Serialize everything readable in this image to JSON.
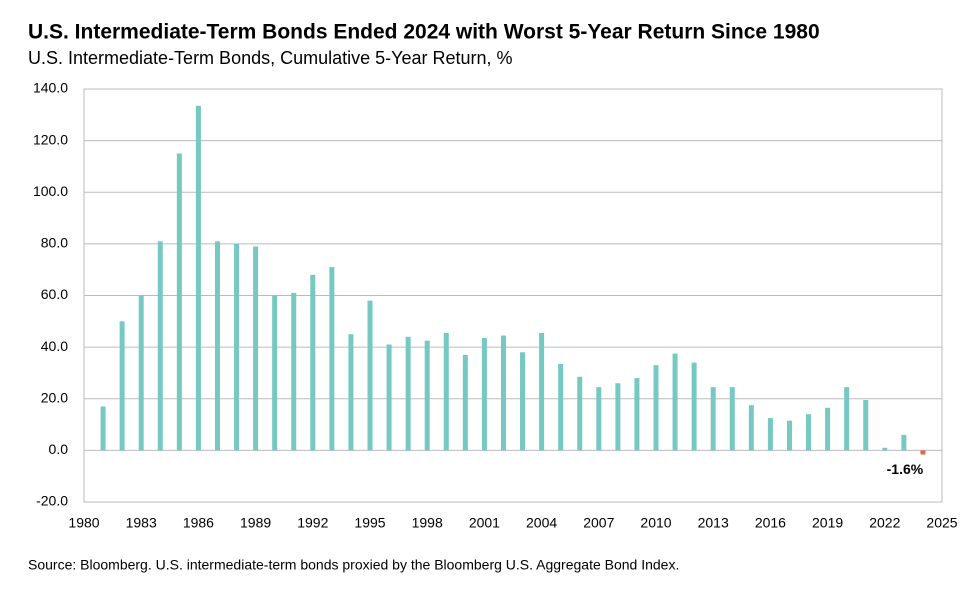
{
  "chart_data": {
    "type": "bar",
    "title": "U.S. Intermediate-Term Bonds Ended 2024 with Worst 5-Year Return Since 1980",
    "subtitle": "U.S. Intermediate-Term Bonds, Cumulative 5-Year Return, %",
    "source": "Source: Bloomberg. U.S. intermediate-term bonds proxied by the Bloomberg U.S. Aggregate Bond Index.",
    "x": [
      1981,
      1982,
      1983,
      1984,
      1985,
      1986,
      1987,
      1988,
      1989,
      1990,
      1991,
      1992,
      1993,
      1994,
      1995,
      1996,
      1997,
      1998,
      1999,
      2000,
      2001,
      2002,
      2003,
      2004,
      2005,
      2006,
      2007,
      2008,
      2009,
      2010,
      2011,
      2012,
      2013,
      2014,
      2015,
      2016,
      2017,
      2018,
      2019,
      2020,
      2021,
      2022,
      2023,
      2024
    ],
    "values": [
      17,
      50,
      60,
      81,
      115,
      133.5,
      81,
      80,
      79,
      60,
      61,
      68,
      71,
      45,
      58,
      41,
      44,
      42.5,
      45.5,
      37,
      43.5,
      44.5,
      38,
      45.5,
      33.5,
      28.5,
      24.5,
      26,
      28,
      33,
      37.5,
      34,
      24.5,
      24.5,
      17.5,
      12.5,
      11.5,
      14,
      16.5,
      24.5,
      19.5,
      1,
      6,
      -1.6
    ],
    "value_labels": [
      null,
      null,
      null,
      null,
      null,
      null,
      null,
      null,
      null,
      null,
      null,
      null,
      null,
      null,
      null,
      null,
      null,
      null,
      null,
      null,
      null,
      null,
      null,
      null,
      null,
      null,
      null,
      null,
      null,
      null,
      null,
      null,
      null,
      null,
      null,
      null,
      null,
      null,
      null,
      null,
      null,
      null,
      null,
      "-1.6%"
    ],
    "colors": [
      "#76c9c2",
      "#76c9c2",
      "#76c9c2",
      "#76c9c2",
      "#76c9c2",
      "#76c9c2",
      "#76c9c2",
      "#76c9c2",
      "#76c9c2",
      "#76c9c2",
      "#76c9c2",
      "#76c9c2",
      "#76c9c2",
      "#76c9c2",
      "#76c9c2",
      "#76c9c2",
      "#76c9c2",
      "#76c9c2",
      "#76c9c2",
      "#76c9c2",
      "#76c9c2",
      "#76c9c2",
      "#76c9c2",
      "#76c9c2",
      "#76c9c2",
      "#76c9c2",
      "#76c9c2",
      "#76c9c2",
      "#76c9c2",
      "#76c9c2",
      "#76c9c2",
      "#76c9c2",
      "#76c9c2",
      "#76c9c2",
      "#76c9c2",
      "#76c9c2",
      "#76c9c2",
      "#76c9c2",
      "#76c9c2",
      "#76c9c2",
      "#76c9c2",
      "#76c9c2",
      "#76c9c2",
      "#e0644f"
    ],
    "xlim": [
      1980,
      2025
    ],
    "xticks": [
      1980,
      1983,
      1986,
      1989,
      1992,
      1995,
      1998,
      2001,
      2004,
      2007,
      2010,
      2013,
      2016,
      2019,
      2022,
      2025
    ],
    "ylim": [
      -20,
      140
    ],
    "yticks": [
      {
        "value": -20,
        "label": "-20.0"
      },
      {
        "value": 0,
        "label": "0.0"
      },
      {
        "value": 20,
        "label": "20.0"
      },
      {
        "value": 40,
        "label": "40.0"
      },
      {
        "value": 60,
        "label": "60.0"
      },
      {
        "value": 80,
        "label": "80.0"
      },
      {
        "value": 100,
        "label": "100.0"
      },
      {
        "value": 120,
        "label": "120.0"
      },
      {
        "value": 140,
        "label": "140.0"
      }
    ],
    "grid": true
  }
}
